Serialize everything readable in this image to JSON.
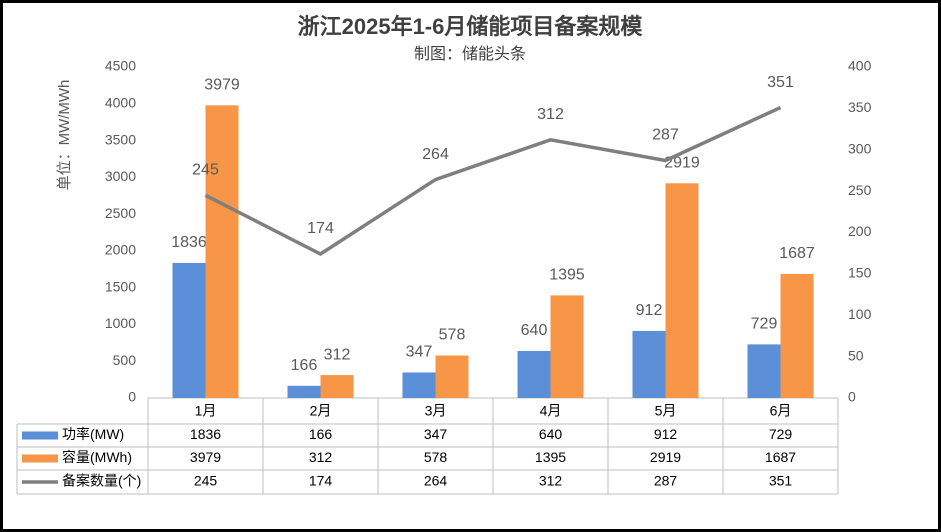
{
  "chart_data": {
    "type": "bar",
    "title": "浙江2025年1-6月储能项目备案规模",
    "subtitle": "制图：储能头条",
    "y_label": "单位：MW/MWh",
    "categories": [
      "1月",
      "2月",
      "3月",
      "4月",
      "5月",
      "6月"
    ],
    "series": [
      {
        "name": "功率(MW)",
        "type": "bar",
        "color": "#5b8fd8",
        "values": [
          1836,
          166,
          347,
          640,
          912,
          729
        ]
      },
      {
        "name": "容量(MWh)",
        "type": "bar",
        "color": "#f79646",
        "values": [
          3979,
          312,
          578,
          1395,
          2919,
          1687
        ]
      },
      {
        "name": "备案数量(个)",
        "type": "line",
        "axis": "y2",
        "color": "#7f7f7f",
        "values": [
          245,
          174,
          264,
          312,
          287,
          351
        ]
      }
    ],
    "ylim": [
      0,
      4500
    ],
    "yticks": [
      0,
      500,
      1000,
      1500,
      2000,
      2500,
      3000,
      3500,
      4000,
      4500
    ],
    "y2lim": [
      0,
      400
    ],
    "y2ticks": [
      0,
      50,
      100,
      150,
      200,
      250,
      300,
      350,
      400
    ]
  }
}
